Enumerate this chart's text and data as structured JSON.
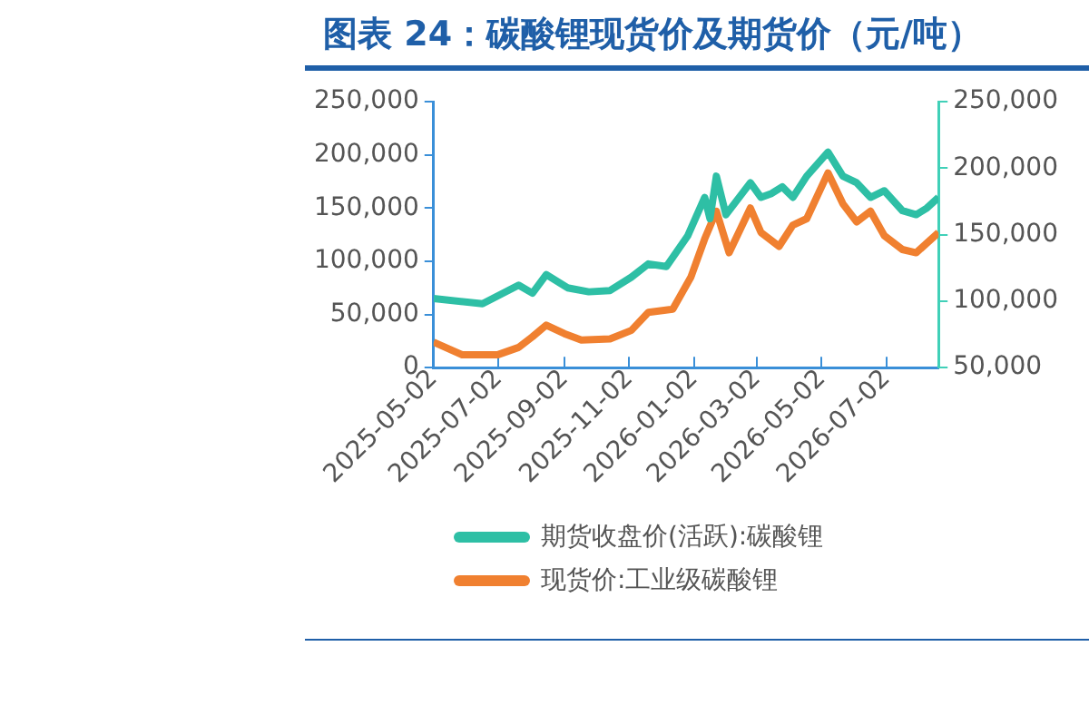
{
  "chart_data": {
    "type": "line",
    "title": "图表 24：碳酸锂现货价及期货价（元/吨）",
    "xlim": [
      "2025-05-02",
      "2026-08-20"
    ],
    "xticks": [
      "2025-05-02",
      "2025-07-02",
      "2025-09-02",
      "2025-11-02",
      "2026-01-02",
      "2026-03-02",
      "2026-05-02",
      "2026-07-02"
    ],
    "ylim": [
      0,
      250000
    ],
    "yticks": [
      0,
      {
        "value": 50000,
        "label": "50,000"
      },
      {
        "value": 100000,
        "label": "100,000"
      },
      {
        "value": 150000,
        "label": "150,000"
      },
      {
        "value": 200000,
        "label": "200,000"
      },
      {
        "value": 250000,
        "label": "250,000"
      }
    ],
    "y2lim": [
      50000,
      250000
    ],
    "y2ticks": [
      {
        "value": 50000,
        "label": "50,000"
      },
      {
        "value": 100000,
        "label": "100,000"
      },
      {
        "value": 150000,
        "label": "150,000"
      },
      {
        "value": 200000,
        "label": "200,000"
      },
      {
        "value": 250000,
        "label": "250,000"
      }
    ],
    "grid": false,
    "legend": "bottom",
    "marker": "none",
    "line_style": "solid",
    "series": [
      {
        "name": "期货收盘价(活跃):碳酸锂",
        "color": "#2ebfa5",
        "axis": "y2",
        "x": [
          "2025-05-02",
          "2025-06-17",
          "2025-07-21",
          "2025-08-03",
          "2025-08-16",
          "2025-09-05",
          "2025-09-25",
          "2025-10-15",
          "2025-11-04",
          "2025-11-20",
          "2025-12-07",
          "2025-12-27",
          "2026-01-12",
          "2026-01-17",
          "2026-01-23",
          "2026-02-01",
          "2026-02-24",
          "2026-03-06",
          "2026-03-16",
          "2026-03-26",
          "2026-04-05",
          "2026-04-18",
          "2026-05-08",
          "2026-05-22",
          "2026-06-04",
          "2026-06-17",
          "2026-06-30",
          "2026-07-17",
          "2026-07-30",
          "2026-08-09",
          "2026-08-20"
        ],
        "values": [
          102000,
          98000,
          112000,
          106000,
          120000,
          110000,
          107000,
          108000,
          118000,
          128000,
          126000,
          149000,
          178000,
          162000,
          194000,
          165000,
          189000,
          178000,
          181000,
          186000,
          178000,
          194000,
          212000,
          194000,
          189000,
          178000,
          183000,
          168000,
          165000,
          170000,
          178000
        ]
      },
      {
        "name": "现货价:工业级碳酸锂",
        "color": "#f08030",
        "axis": "y",
        "x": [
          "2025-05-02",
          "2025-05-29",
          "2025-07-01",
          "2025-07-21",
          "2025-08-03",
          "2025-08-16",
          "2025-09-02",
          "2025-09-18",
          "2025-10-15",
          "2025-11-04",
          "2025-11-20",
          "2025-12-13",
          "2025-12-30",
          "2026-01-12",
          "2026-01-23",
          "2026-02-04",
          "2026-02-24",
          "2026-03-06",
          "2026-03-23",
          "2026-04-05",
          "2026-04-18",
          "2026-05-08",
          "2026-05-22",
          "2026-06-04",
          "2026-06-17",
          "2026-06-30",
          "2026-07-17",
          "2026-07-30",
          "2026-08-20"
        ],
        "values": [
          24000,
          12000,
          12000,
          19000,
          29000,
          40000,
          32000,
          26000,
          27000,
          35000,
          52000,
          55000,
          85000,
          121000,
          147000,
          108000,
          150000,
          127000,
          114000,
          134000,
          140000,
          183000,
          154000,
          137000,
          147000,
          124000,
          111000,
          108000,
          127000
        ]
      }
    ]
  }
}
